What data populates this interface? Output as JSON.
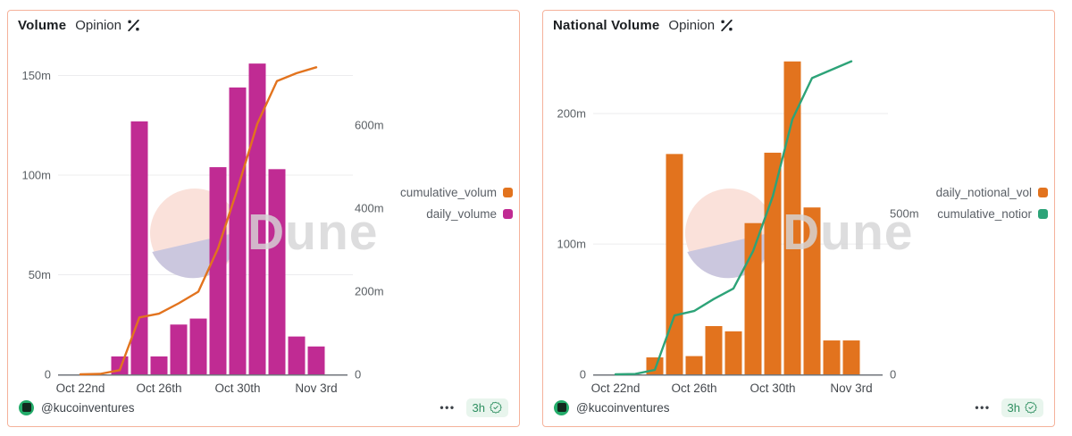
{
  "watermark_text": "Dune",
  "cards": [
    {
      "title": "Volume",
      "subtitle": "Opinion",
      "legend": [
        {
          "label": "cumulative_volum",
          "color": "#E2731E"
        },
        {
          "label": "daily_volume",
          "color": "#C02B93"
        }
      ],
      "footer": {
        "handle": "@kucoinventures",
        "menu": "•••",
        "age": "3h"
      },
      "chart_data": {
        "type": "bar+line",
        "title": "Volume",
        "x": [
          "Oct 22",
          "Oct 23",
          "Oct 24",
          "Oct 25",
          "Oct 26",
          "Oct 27",
          "Oct 28",
          "Oct 29",
          "Oct 30",
          "Oct 31",
          "Nov 1",
          "Nov 2",
          "Nov 3"
        ],
        "x_tick_labels": [
          "Oct 22nd",
          "Oct 26th",
          "Oct 30th",
          "Nov 3rd"
        ],
        "x_tick_indices": [
          0,
          4,
          8,
          12
        ],
        "series": [
          {
            "name": "daily_volume",
            "type": "bar",
            "axis": "left",
            "color": "#C02B93",
            "values": [
              0,
              0,
              9,
              127,
              9,
              25,
              28,
              104,
              144,
              156,
              103,
              19,
              14
            ]
          },
          {
            "name": "cumulative_volume",
            "type": "line",
            "axis": "right",
            "color": "#E2731E",
            "values": [
              0,
              1,
              10,
              137,
              146,
              171,
              199,
              303,
              447,
              603,
              706,
              725,
              739
            ]
          }
        ],
        "left_axis": {
          "ticks": [
            0,
            50,
            100,
            150
          ],
          "tick_labels": [
            "0",
            "50m",
            "100m",
            "150m"
          ],
          "max": 161,
          "unit": "millions"
        },
        "right_axis": {
          "ticks": [
            0,
            200,
            400,
            600
          ],
          "tick_labels": [
            "0",
            "200m",
            "400m",
            "600m"
          ],
          "max": 772,
          "unit": "millions"
        },
        "grid": "horizontal",
        "legend_position": "right"
      }
    },
    {
      "title": "National Volume",
      "subtitle": "Opinion",
      "legend": [
        {
          "label": "daily_notional_vol",
          "color": "#E2731E"
        },
        {
          "label": "cumulative_notior",
          "color": "#2DA378"
        }
      ],
      "footer": {
        "handle": "@kucoinventures",
        "menu": "•••",
        "age": "3h"
      },
      "chart_data": {
        "type": "bar+line",
        "title": "National Volume",
        "x": [
          "Oct 22",
          "Oct 23",
          "Oct 24",
          "Oct 25",
          "Oct 26",
          "Oct 27",
          "Oct 28",
          "Oct 29",
          "Oct 30",
          "Oct 31",
          "Nov 1",
          "Nov 2",
          "Nov 3"
        ],
        "x_tick_labels": [
          "Oct 22nd",
          "Oct 26th",
          "Oct 30th",
          "Nov 3rd"
        ],
        "x_tick_indices": [
          0,
          4,
          8,
          12
        ],
        "series": [
          {
            "name": "daily_notional_vol",
            "type": "bar",
            "axis": "left",
            "color": "#E2731E",
            "values": [
              0,
              0,
              13,
              169,
              14,
              37,
              33,
              116,
              170,
              240,
              128,
              26,
              26
            ]
          },
          {
            "name": "cumulative_notional",
            "type": "line",
            "axis": "right",
            "color": "#2DA378",
            "values": [
              0,
              1,
              14,
              183,
              197,
              234,
              267,
              383,
              553,
              793,
              921,
              947,
              973
            ]
          }
        ],
        "left_axis": {
          "ticks": [
            0,
            100,
            200
          ],
          "tick_labels": [
            "0",
            "100m",
            "200m"
          ],
          "max": 246,
          "unit": "millions"
        },
        "right_axis": {
          "ticks": [
            0,
            500
          ],
          "tick_labels": [
            "0",
            "500m"
          ],
          "max": 997,
          "unit": "millions"
        },
        "grid": "horizontal",
        "legend_position": "right"
      }
    }
  ]
}
